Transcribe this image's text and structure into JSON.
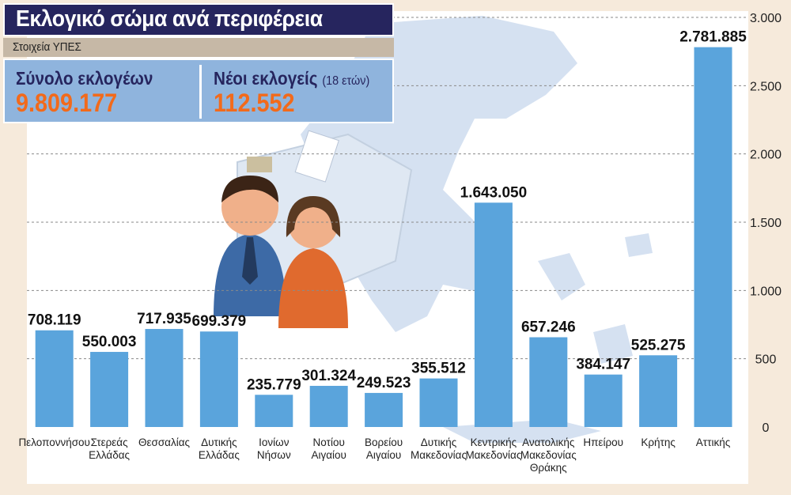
{
  "header": {
    "title": "Εκλογικό σώμα ανά περιφέρεια",
    "source": "Στοιχεία ΥΠΕΣ"
  },
  "stats": {
    "total_label": "Σύνολο εκλογέων",
    "total_value": "9.809.177",
    "new_label": "Νέοι εκλογείς",
    "new_note": "(18 ετών)",
    "new_value": "112.552"
  },
  "colors": {
    "bar": "#5aa4dc",
    "title_bg": "#26255e",
    "accent": "#f26a1b",
    "background": "#f6eadb",
    "chart_bg": "#ffffff"
  },
  "chart_data": {
    "type": "bar",
    "categories": [
      [
        "Πελοποννήσου"
      ],
      [
        "Στερεάς",
        "Ελλάδας"
      ],
      [
        "Θεσσαλίας"
      ],
      [
        "Δυτικής",
        "Ελλάδας"
      ],
      [
        "Ιονίων",
        "Νήσων"
      ],
      [
        "Νοτίου",
        "Αιγαίου"
      ],
      [
        "Βορείου",
        "Αιγαίου"
      ],
      [
        "Δυτικής",
        "Μακεδονίας"
      ],
      [
        "Κεντρικής",
        "Μακεδονίας"
      ],
      [
        "Ανατολικής",
        "Μακεδονίας",
        "Θράκης"
      ],
      [
        "Ηπείρου"
      ],
      [
        "Κρήτης"
      ],
      [
        "Αττικής"
      ]
    ],
    "values": [
      708119,
      550003,
      717935,
      699379,
      235779,
      301324,
      249523,
      355512,
      1643050,
      657246,
      384147,
      525275,
      2781885
    ],
    "value_labels": [
      "708.119",
      "550.003",
      "717.935",
      "699.379",
      "235.779",
      "301.324",
      "249.523",
      "355.512",
      "1.643.050",
      "657.246",
      "384.147",
      "525.275",
      "2.781.885"
    ],
    "yticks": [
      0,
      500,
      1000,
      1500,
      2000,
      2500,
      3000
    ],
    "ytick_labels": [
      "0",
      "500",
      "1.000",
      "1.500",
      "2.000",
      "2.500",
      "3.000"
    ],
    "ylim": [
      0,
      3000000
    ],
    "grid": true
  }
}
